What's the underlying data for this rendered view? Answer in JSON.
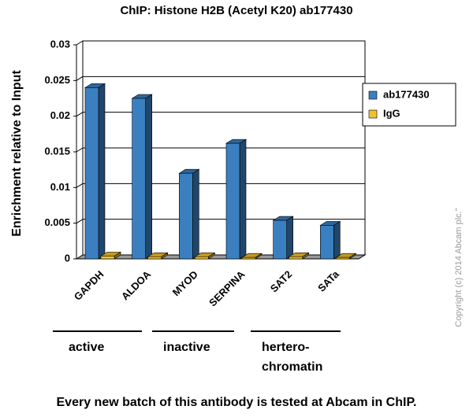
{
  "chart_data": {
    "type": "bar3d",
    "title": "ChIP: Histone H2B (Acetyl K20) ab177430",
    "y_label": "Enrichment relative to Input",
    "categories": [
      "GAPDH",
      "ALDOA",
      "MYOD",
      "SERPINA",
      "SAT2",
      "SATa"
    ],
    "series": [
      {
        "name": "ab177430",
        "color": "#3a7fc0",
        "values": [
          0.024,
          0.0225,
          0.012,
          0.0162,
          0.0054,
          0.0047
        ]
      },
      {
        "name": "IgG",
        "color": "#f2c22c",
        "values": [
          0.0004,
          0.0003,
          0.0003,
          0.0002,
          0.0003,
          0.0002
        ]
      }
    ],
    "ylim": [
      0,
      0.03
    ],
    "yticks": [
      0,
      0.005,
      0.01,
      0.015,
      0.02,
      0.025,
      0.03
    ],
    "grid": true,
    "legend": "right",
    "groups": [
      {
        "lines": [
          "active"
        ]
      },
      {
        "lines": [
          "inactive"
        ]
      },
      {
        "lines": [
          "hertero-",
          "chromatin"
        ]
      }
    ],
    "caption": "Every new batch of this antibody is tested at Abcam in ChIP.",
    "copyright": "Copyright (c) 2014 Abcam plc.\""
  }
}
